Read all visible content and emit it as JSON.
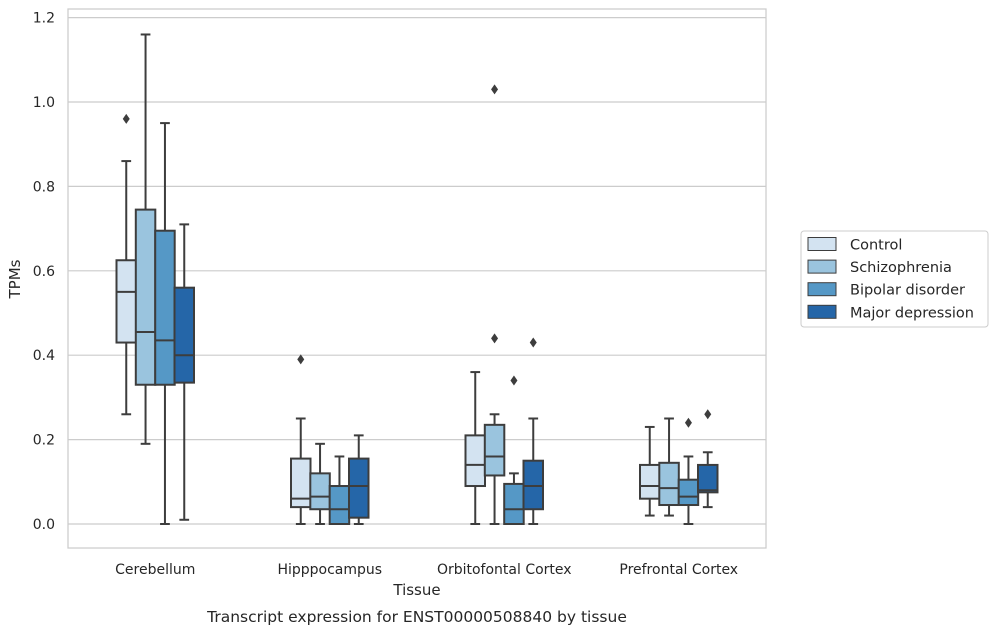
{
  "chart_data": {
    "type": "box",
    "caption": "Transcript expression for ENST00000508840 by tissue",
    "xlabel": "Tissue",
    "ylabel": "TPMs",
    "ylim": [
      -0.055,
      1.225
    ],
    "yticks": [
      0.0,
      0.2,
      0.4,
      0.6,
      0.8,
      1.0,
      1.2
    ],
    "ytick_labels": [
      "0.0",
      "0.2",
      "0.4",
      "0.6",
      "0.8",
      "1.0",
      "1.2"
    ],
    "grid": "horizontal",
    "legend_position": "right",
    "categories": [
      "Cerebellum",
      "Hipppocampus",
      "Orbitofontal Cortex",
      "Prefrontal Cortex"
    ],
    "series": [
      {
        "name": "Control",
        "color": "#d3e3f1",
        "boxes": [
          {
            "whisker_low": 0.26,
            "q1": 0.43,
            "median": 0.55,
            "q3": 0.625,
            "whisker_high": 0.86,
            "outliers": [
              0.96
            ]
          },
          {
            "whisker_low": 0.0,
            "q1": 0.04,
            "median": 0.06,
            "q3": 0.155,
            "whisker_high": 0.25,
            "outliers": [
              0.39
            ]
          },
          {
            "whisker_low": 0.0,
            "q1": 0.09,
            "median": 0.14,
            "q3": 0.21,
            "whisker_high": 0.36,
            "outliers": []
          },
          {
            "whisker_low": 0.02,
            "q1": 0.06,
            "median": 0.09,
            "q3": 0.14,
            "whisker_high": 0.23,
            "outliers": []
          }
        ]
      },
      {
        "name": "Schizophrenia",
        "color": "#9ac4de",
        "boxes": [
          {
            "whisker_low": 0.19,
            "q1": 0.33,
            "median": 0.455,
            "q3": 0.745,
            "whisker_high": 1.16,
            "outliers": []
          },
          {
            "whisker_low": 0.0,
            "q1": 0.035,
            "median": 0.065,
            "q3": 0.12,
            "whisker_high": 0.19,
            "outliers": []
          },
          {
            "whisker_low": 0.0,
            "q1": 0.115,
            "median": 0.16,
            "q3": 0.235,
            "whisker_high": 0.26,
            "outliers": [
              0.44,
              1.03
            ]
          },
          {
            "whisker_low": 0.02,
            "q1": 0.045,
            "median": 0.085,
            "q3": 0.145,
            "whisker_high": 0.25,
            "outliers": []
          }
        ]
      },
      {
        "name": "Bipolar disorder",
        "color": "#5598c6",
        "boxes": [
          {
            "whisker_low": 0.0,
            "q1": 0.33,
            "median": 0.435,
            "q3": 0.695,
            "whisker_high": 0.95,
            "outliers": []
          },
          {
            "whisker_low": 0.0,
            "q1": 0.0,
            "median": 0.035,
            "q3": 0.09,
            "whisker_high": 0.16,
            "outliers": []
          },
          {
            "whisker_low": 0.0,
            "q1": 0.0,
            "median": 0.035,
            "q3": 0.095,
            "whisker_high": 0.12,
            "outliers": [
              0.34
            ]
          },
          {
            "whisker_low": 0.0,
            "q1": 0.045,
            "median": 0.065,
            "q3": 0.105,
            "whisker_high": 0.16,
            "outliers": [
              0.24
            ]
          }
        ]
      },
      {
        "name": "Major depression",
        "color": "#2566a8",
        "boxes": [
          {
            "whisker_low": 0.01,
            "q1": 0.335,
            "median": 0.4,
            "q3": 0.56,
            "whisker_high": 0.71,
            "outliers": []
          },
          {
            "whisker_low": 0.0,
            "q1": 0.015,
            "median": 0.09,
            "q3": 0.155,
            "whisker_high": 0.21,
            "outliers": []
          },
          {
            "whisker_low": 0.0,
            "q1": 0.035,
            "median": 0.09,
            "q3": 0.15,
            "whisker_high": 0.25,
            "outliers": [
              0.43
            ]
          },
          {
            "whisker_low": 0.04,
            "q1": 0.075,
            "median": 0.08,
            "q3": 0.14,
            "whisker_high": 0.17,
            "outliers": [
              0.26
            ]
          }
        ]
      }
    ]
  }
}
